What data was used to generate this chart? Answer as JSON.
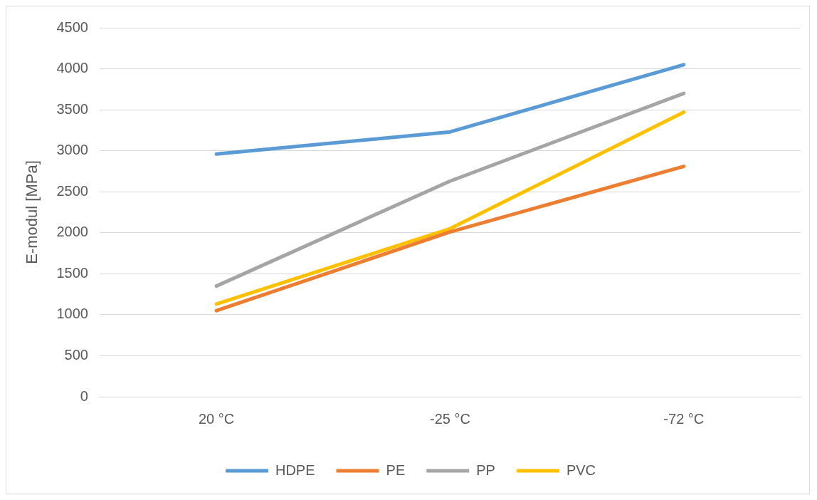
{
  "chart_data": {
    "type": "line",
    "ylabel": "E-modul [MPa]",
    "categories": [
      "20 °C",
      "-25 °C",
      "-72 °C"
    ],
    "series": [
      {
        "name": "HDPE",
        "color": "#5b9bd5",
        "values": [
          2960,
          3230,
          4050
        ]
      },
      {
        "name": "PE",
        "color": "#ed7d31",
        "values": [
          1050,
          2010,
          2810
        ]
      },
      {
        "name": "PP",
        "color": "#a5a5a5",
        "values": [
          1350,
          2630,
          3700
        ]
      },
      {
        "name": "PVC",
        "color": "#ffc000",
        "values": [
          1130,
          2050,
          3470
        ]
      }
    ],
    "ylim": [
      0,
      4500
    ],
    "yticks": [
      0,
      500,
      1000,
      1500,
      2000,
      2500,
      3000,
      3500,
      4000,
      4500
    ],
    "grid": "y",
    "legend": "bottom",
    "marker": "none",
    "line_style": "solid"
  }
}
